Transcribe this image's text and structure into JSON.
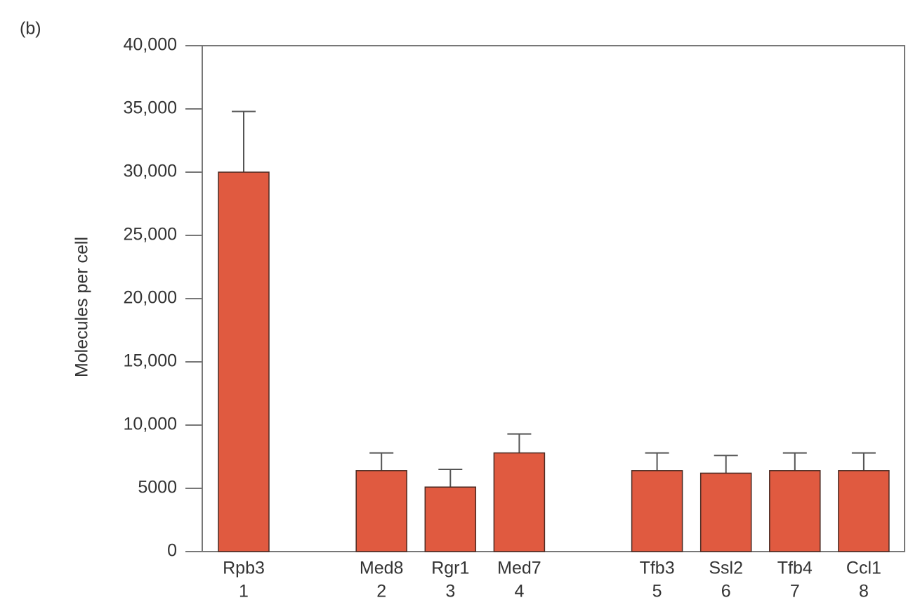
{
  "chart_data": {
    "type": "bar",
    "panel_label": "(b)",
    "ylabel": "Molecules per cell",
    "categories": [
      "Rpb3",
      null,
      "Med8",
      "Rgr1",
      "Med7",
      null,
      "Tfb3",
      "Ssl2",
      "Tfb4",
      "Ccl1"
    ],
    "category_numbers": [
      "1",
      null,
      "2",
      "3",
      "4",
      null,
      "5",
      "6",
      "7",
      "8"
    ],
    "values": [
      30000,
      null,
      6400,
      5100,
      7800,
      null,
      6400,
      6200,
      6400,
      6400
    ],
    "errors": [
      4800,
      null,
      1400,
      1400,
      1500,
      null,
      1400,
      1400,
      1400,
      1400
    ],
    "color": "#e05a40",
    "ylim": [
      0,
      40000
    ],
    "yticks": [
      0,
      5000,
      {
        "value": 10000,
        "label": "10,000"
      },
      {
        "value": 15000,
        "label": "15,000"
      },
      {
        "value": 20000,
        "label": "20,000"
      },
      {
        "value": 25000,
        "label": "25,000"
      },
      {
        "value": 30000,
        "label": "30,000"
      },
      {
        "value": 35000,
        "label": "35,000"
      },
      {
        "value": 40000,
        "label": "40,000"
      }
    ]
  }
}
